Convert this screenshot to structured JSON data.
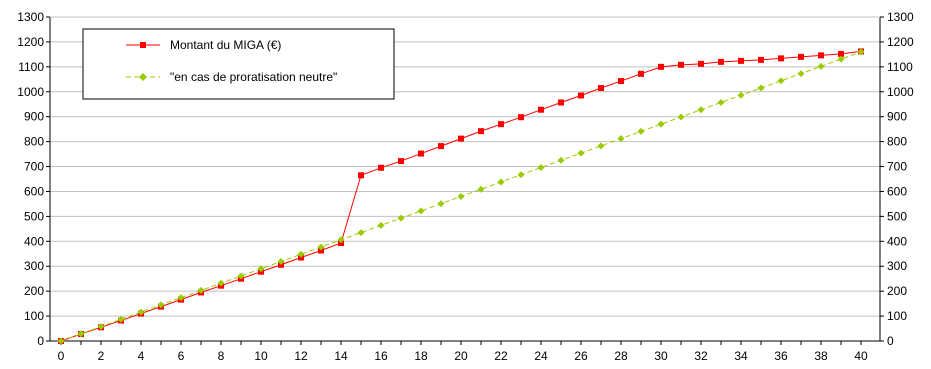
{
  "chart_data": {
    "type": "line",
    "title": "",
    "xlabel": "",
    "ylabel": "",
    "xlim": [
      0,
      41
    ],
    "ylim": [
      0,
      1300
    ],
    "x_ticks": [
      0,
      2,
      4,
      6,
      8,
      10,
      12,
      14,
      16,
      18,
      20,
      22,
      24,
      26,
      28,
      30,
      32,
      34,
      36,
      38,
      40
    ],
    "y_ticks": [
      0,
      100,
      200,
      300,
      400,
      500,
      600,
      700,
      800,
      900,
      1000,
      1100,
      1200,
      1300
    ],
    "grid": "horizontal",
    "legend_position": "top-left",
    "series": [
      {
        "name": "Montant du MIGA (€)",
        "color": "#ff0000",
        "line_style": "solid",
        "marker": "square",
        "x": [
          0,
          1,
          2,
          3,
          4,
          5,
          6,
          7,
          8,
          9,
          10,
          11,
          12,
          13,
          14,
          15,
          16,
          17,
          18,
          19,
          20,
          21,
          22,
          23,
          24,
          25,
          26,
          27,
          28,
          29,
          30,
          31,
          32,
          33,
          34,
          35,
          36,
          37,
          38,
          39,
          40
        ],
        "values": [
          0,
          28,
          55,
          82,
          110,
          138,
          166,
          195,
          222,
          250,
          278,
          306,
          335,
          363,
          393,
          665,
          695,
          722,
          752,
          782,
          812,
          842,
          870,
          898,
          928,
          957,
          985,
          1015,
          1043,
          1072,
          1100,
          1108,
          1112,
          1120,
          1124,
          1128,
          1134,
          1140,
          1146,
          1152,
          1162
        ]
      },
      {
        "name": "\"en cas de proratisation neutre\"",
        "color": "#99cc00",
        "line_style": "dashed",
        "marker": "diamond",
        "x": [
          0,
          1,
          2,
          3,
          4,
          5,
          6,
          7,
          8,
          9,
          10,
          11,
          12,
          13,
          14,
          15,
          16,
          17,
          18,
          19,
          20,
          21,
          22,
          23,
          24,
          25,
          26,
          27,
          28,
          29,
          30,
          31,
          32,
          33,
          34,
          35,
          36,
          37,
          38,
          39,
          40
        ],
        "values": [
          0,
          29,
          58,
          87,
          116,
          145,
          174,
          203,
          232,
          261,
          290,
          319,
          348,
          377,
          406,
          435,
          464,
          493,
          522,
          551,
          580,
          609,
          638,
          667,
          696,
          725,
          754,
          783,
          812,
          841,
          870,
          899,
          928,
          957,
          986,
          1015,
          1044,
          1073,
          1102,
          1131,
          1160
        ]
      }
    ]
  }
}
